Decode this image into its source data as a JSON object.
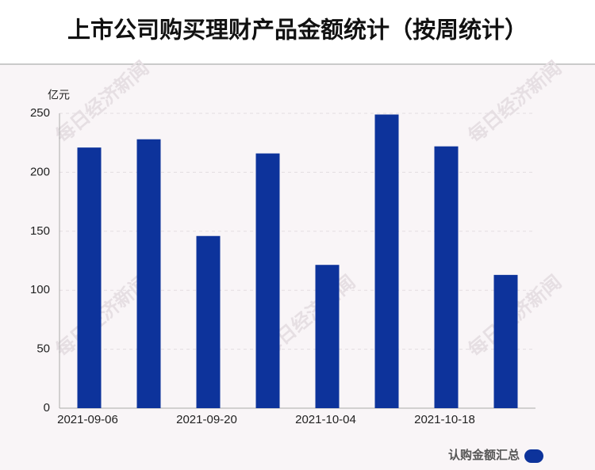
{
  "chart_data": {
    "type": "bar",
    "title": "上市公司购买理财产品金额统计（按周统计）",
    "y_unit": "亿元",
    "watermark": "每日经济新闻",
    "categories": [
      "2021-09-06",
      null,
      "2021-09-20",
      null,
      "2021-10-04",
      null,
      "2021-10-18",
      null
    ],
    "series": [
      {
        "name": "认购金额汇总",
        "color": "#0d339b",
        "values": [
          221,
          228,
          146,
          216,
          121.5,
          249,
          222,
          113
        ]
      }
    ],
    "ylim": [
      0,
      250
    ],
    "yticks": [
      0,
      50,
      100,
      150,
      200,
      250
    ],
    "grid": true
  }
}
